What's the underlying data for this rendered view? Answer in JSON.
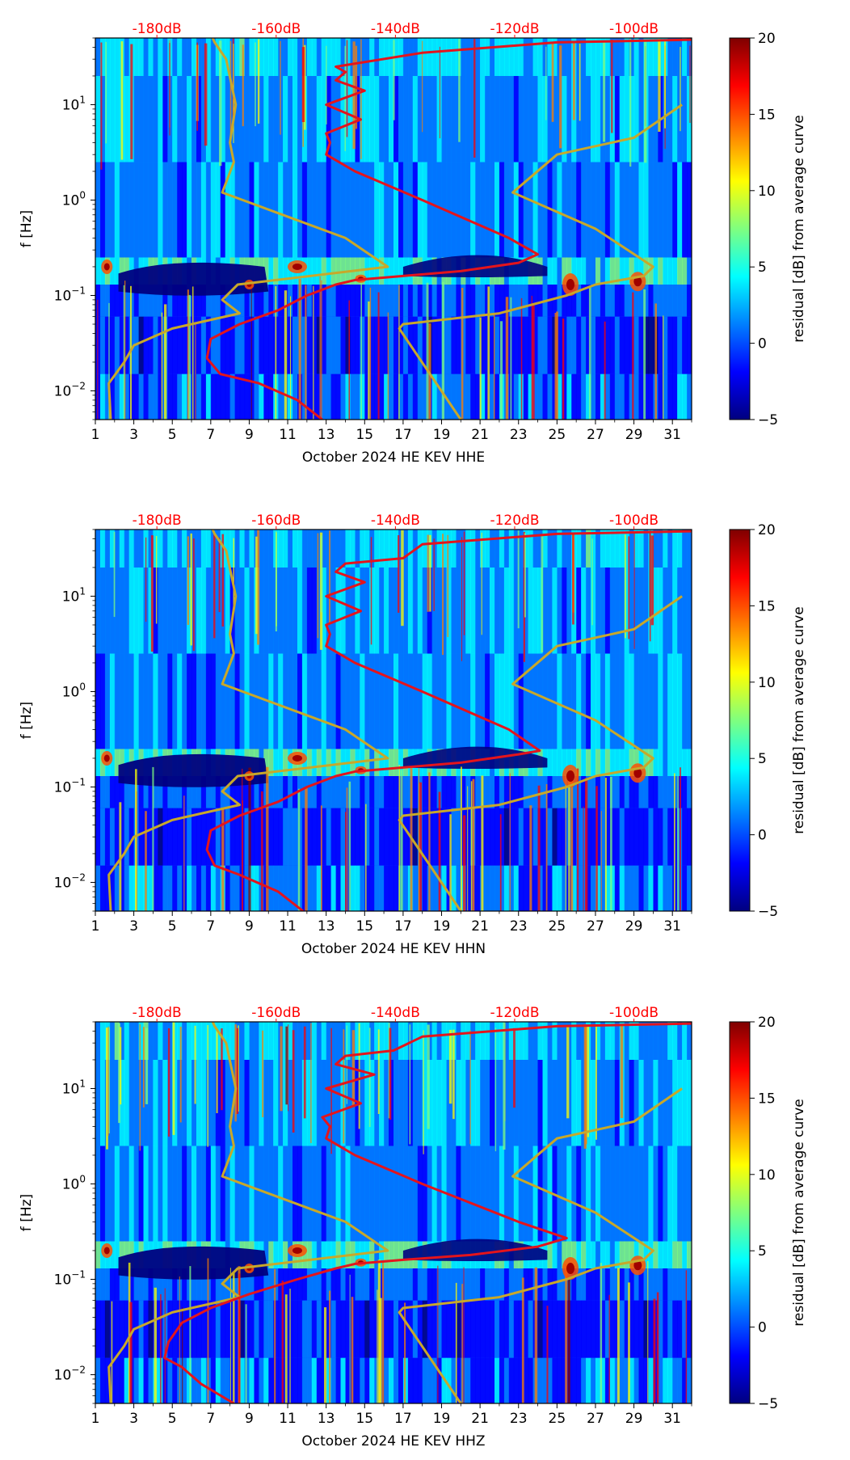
{
  "colormap": [
    "#00007f",
    "#0000ff",
    "#007fff",
    "#00ffff",
    "#7fff7f",
    "#ffff00",
    "#ff7f00",
    "#ff0000",
    "#7f0000"
  ],
  "line_colors": {
    "noise_model": "#c8a82a",
    "ppsd_mode": "#e4141c",
    "db_label": "#ff0000"
  },
  "chart_data": [
    {
      "type": "heatmap",
      "panel": "HHE",
      "xlabel": "October 2024 HE KEV  HHE",
      "ylabel": "f [Hz]",
      "colorbar_label": "residual [dB] from average curve",
      "x_ticks": [
        "1",
        "3",
        "5",
        "7",
        "9",
        "11",
        "13",
        "15",
        "17",
        "19",
        "21",
        "23",
        "25",
        "27",
        "29",
        "31"
      ],
      "x_tick_values": [
        1,
        3,
        5,
        7,
        9,
        11,
        13,
        15,
        17,
        19,
        21,
        23,
        25,
        27,
        29,
        31
      ],
      "xlim": [
        1,
        32
      ],
      "y_scale": "log",
      "ylim": [
        0.005,
        50
      ],
      "y_ticks": [
        {
          "value": 0.01,
          "base": "10",
          "exp": "−2"
        },
        {
          "value": 0.1,
          "base": "10",
          "exp": "−1"
        },
        {
          "value": 1,
          "base": "10",
          "exp": "0"
        },
        {
          "value": 10,
          "base": "10",
          "exp": "1"
        }
      ],
      "colorbar_ticks": [
        "−5",
        "0",
        "5",
        "10",
        "15",
        "20"
      ],
      "colorbar_tick_values": [
        -5,
        0,
        5,
        10,
        15,
        20
      ],
      "clim": [
        -5,
        20
      ],
      "db_axis_labels": [
        "-180dB",
        "-160dB",
        "-140dB",
        "-120dB",
        "-100dB"
      ],
      "db_axis_positions": [
        4.2,
        10.4,
        16.6,
        22.8,
        29.0
      ],
      "noise_model": {
        "x": [
          1.8,
          1.7,
          2.5,
          3.0,
          5.0,
          8.5,
          7.6,
          8.4,
          16.2,
          14.0,
          7.6,
          8.2,
          8.0,
          8.3,
          7.8,
          7.2,
          7.1
        ],
        "f": [
          0.005,
          0.012,
          0.02,
          0.03,
          0.045,
          0.065,
          0.09,
          0.13,
          0.2,
          0.4,
          1.2,
          2.5,
          4,
          10,
          30,
          45,
          50
        ]
      },
      "noise_model_right": {
        "x": [
          20.0,
          16.8,
          17.0,
          22.0,
          25.5,
          27.0,
          29.5,
          30.0,
          27.0,
          22.7,
          25.0,
          29.0,
          31.5
        ],
        "f": [
          0.005,
          0.045,
          0.05,
          0.065,
          0.1,
          0.13,
          0.16,
          0.2,
          0.5,
          1.2,
          3,
          4.5,
          10
        ]
      },
      "ppsd_mode": {
        "x": [
          12.8,
          11.5,
          9.5,
          7.5,
          6.8,
          7.0,
          8.5,
          10.5,
          12.0,
          13.5,
          14.5,
          17.0,
          20.0,
          23.0,
          24.0,
          22.5,
          18.0,
          14.5,
          13.0,
          13.2,
          13.0,
          14.8,
          13.0,
          15.0,
          13.5,
          14.0,
          13.5,
          18.0,
          25.0,
          32.0
        ],
        "f": [
          0.005,
          0.008,
          0.012,
          0.015,
          0.022,
          0.035,
          0.05,
          0.07,
          0.1,
          0.13,
          0.145,
          0.16,
          0.18,
          0.22,
          0.27,
          0.4,
          1.0,
          2.0,
          3.0,
          4.0,
          5.0,
          7.0,
          10.0,
          14.0,
          18.0,
          22.0,
          25.0,
          35.0,
          45.0,
          48.0
        ]
      }
    },
    {
      "type": "heatmap",
      "panel": "HHN",
      "xlabel": "October 2024 HE KEV  HHN",
      "ylabel": "f [Hz]",
      "colorbar_label": "residual [dB] from average curve",
      "x_ticks": [
        "1",
        "3",
        "5",
        "7",
        "9",
        "11",
        "13",
        "15",
        "17",
        "19",
        "21",
        "23",
        "25",
        "27",
        "29",
        "31"
      ],
      "x_tick_values": [
        1,
        3,
        5,
        7,
        9,
        11,
        13,
        15,
        17,
        19,
        21,
        23,
        25,
        27,
        29,
        31
      ],
      "xlim": [
        1,
        32
      ],
      "y_scale": "log",
      "ylim": [
        0.005,
        50
      ],
      "y_ticks": [
        {
          "value": 0.01,
          "base": "10",
          "exp": "−2"
        },
        {
          "value": 0.1,
          "base": "10",
          "exp": "−1"
        },
        {
          "value": 1,
          "base": "10",
          "exp": "0"
        },
        {
          "value": 10,
          "base": "10",
          "exp": "1"
        }
      ],
      "colorbar_ticks": [
        "−5",
        "0",
        "5",
        "10",
        "15",
        "20"
      ],
      "colorbar_tick_values": [
        -5,
        0,
        5,
        10,
        15,
        20
      ],
      "clim": [
        -5,
        20
      ],
      "db_axis_labels": [
        "-180dB",
        "-160dB",
        "-140dB",
        "-120dB",
        "-100dB"
      ],
      "db_axis_positions": [
        4.2,
        10.4,
        16.6,
        22.8,
        29.0
      ],
      "noise_model": {
        "x": [
          1.8,
          1.7,
          2.5,
          3.0,
          5.0,
          8.5,
          7.6,
          8.4,
          16.2,
          14.0,
          7.6,
          8.2,
          8.0,
          8.3,
          7.8,
          7.2,
          7.1
        ],
        "f": [
          0.005,
          0.012,
          0.02,
          0.03,
          0.045,
          0.065,
          0.09,
          0.13,
          0.2,
          0.4,
          1.2,
          2.5,
          4,
          10,
          30,
          45,
          50
        ]
      },
      "noise_model_right": {
        "x": [
          20.0,
          16.8,
          17.0,
          22.0,
          25.5,
          27.0,
          29.5,
          30.0,
          27.0,
          22.7,
          25.0,
          29.0,
          31.5
        ],
        "f": [
          0.005,
          0.045,
          0.05,
          0.065,
          0.1,
          0.13,
          0.16,
          0.2,
          0.5,
          1.2,
          3,
          4.5,
          10
        ]
      },
      "ppsd_mode": {
        "x": [
          11.8,
          10.5,
          8.5,
          7.2,
          6.8,
          7.0,
          8.5,
          10.5,
          12.0,
          13.5,
          14.5,
          17.0,
          20.0,
          23.0,
          24.1,
          22.5,
          18.0,
          14.5,
          13.0,
          13.2,
          13.0,
          14.8,
          13.0,
          15.0,
          13.5,
          14.0,
          17.0,
          18.0,
          25.0,
          32.0
        ],
        "f": [
          0.005,
          0.008,
          0.012,
          0.015,
          0.022,
          0.035,
          0.05,
          0.07,
          0.1,
          0.13,
          0.145,
          0.16,
          0.18,
          0.22,
          0.24,
          0.4,
          1.0,
          2.0,
          3.0,
          4.0,
          5.0,
          7.0,
          10.0,
          14.0,
          18.0,
          22.0,
          25.0,
          35.0,
          45.0,
          48.0
        ]
      }
    },
    {
      "type": "heatmap",
      "panel": "HHZ",
      "xlabel": "October 2024 HE KEV  HHZ",
      "ylabel": "f [Hz]",
      "colorbar_label": "residual [dB] from average curve",
      "x_ticks": [
        "1",
        "3",
        "5",
        "7",
        "9",
        "11",
        "13",
        "15",
        "17",
        "19",
        "21",
        "23",
        "25",
        "27",
        "29",
        "31"
      ],
      "x_tick_values": [
        1,
        3,
        5,
        7,
        9,
        11,
        13,
        15,
        17,
        19,
        21,
        23,
        25,
        27,
        29,
        31
      ],
      "xlim": [
        1,
        32
      ],
      "y_scale": "log",
      "ylim": [
        0.005,
        50
      ],
      "y_ticks": [
        {
          "value": 0.01,
          "base": "10",
          "exp": "−2"
        },
        {
          "value": 0.1,
          "base": "10",
          "exp": "−1"
        },
        {
          "value": 1,
          "base": "10",
          "exp": "0"
        },
        {
          "value": 10,
          "base": "10",
          "exp": "1"
        }
      ],
      "colorbar_ticks": [
        "−5",
        "0",
        "5",
        "10",
        "15",
        "20"
      ],
      "colorbar_tick_values": [
        -5,
        0,
        5,
        10,
        15,
        20
      ],
      "clim": [
        -5,
        20
      ],
      "db_axis_labels": [
        "-180dB",
        "-160dB",
        "-140dB",
        "-120dB",
        "-100dB"
      ],
      "db_axis_positions": [
        4.2,
        10.4,
        16.6,
        22.8,
        29.0
      ],
      "noise_model": {
        "x": [
          1.8,
          1.7,
          2.5,
          3.0,
          5.0,
          8.5,
          7.6,
          8.4,
          16.2,
          14.0,
          7.6,
          8.2,
          8.0,
          8.3,
          7.8,
          7.2,
          7.1
        ],
        "f": [
          0.005,
          0.012,
          0.02,
          0.03,
          0.045,
          0.065,
          0.09,
          0.13,
          0.2,
          0.4,
          1.2,
          2.5,
          4,
          10,
          30,
          45,
          50
        ]
      },
      "noise_model_right": {
        "x": [
          20.0,
          16.8,
          17.0,
          22.0,
          25.5,
          27.0,
          29.5,
          30.0,
          27.0,
          22.7,
          25.0,
          29.0,
          31.5
        ],
        "f": [
          0.005,
          0.045,
          0.05,
          0.065,
          0.1,
          0.13,
          0.16,
          0.2,
          0.5,
          1.2,
          3,
          4.5,
          10
        ]
      },
      "ppsd_mode": {
        "x": [
          8.2,
          6.5,
          5.5,
          4.6,
          4.8,
          5.5,
          7.0,
          9.0,
          11.5,
          13.5,
          14.5,
          17.0,
          20.5,
          24.0,
          25.5,
          23.0,
          18.0,
          14.5,
          13.0,
          13.2,
          12.8,
          14.8,
          13.0,
          15.5,
          13.5,
          14.0,
          16.5,
          18.0,
          25.0,
          32.0
        ],
        "f": [
          0.005,
          0.008,
          0.012,
          0.015,
          0.022,
          0.035,
          0.05,
          0.07,
          0.1,
          0.13,
          0.145,
          0.16,
          0.18,
          0.22,
          0.27,
          0.4,
          1.0,
          2.0,
          3.0,
          4.0,
          5.0,
          7.0,
          10.0,
          14.0,
          18.0,
          22.0,
          25.0,
          35.0,
          45.0,
          48.0
        ]
      }
    }
  ]
}
